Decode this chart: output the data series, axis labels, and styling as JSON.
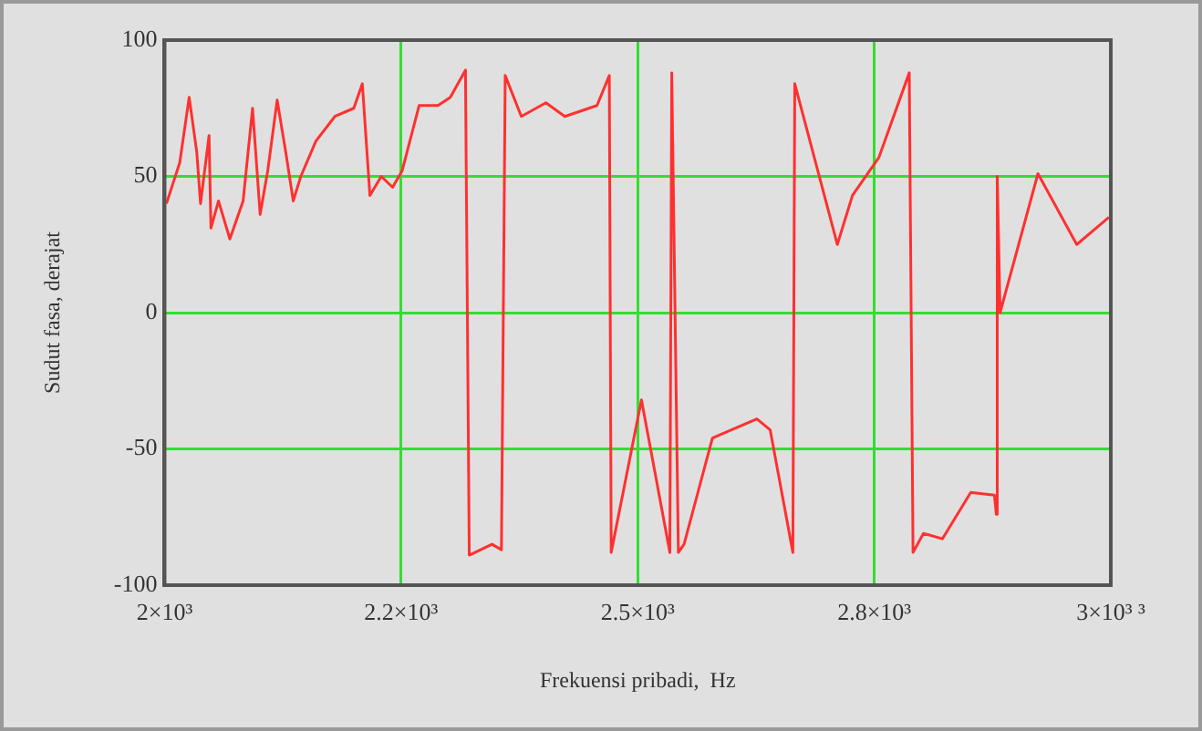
{
  "chart_data": {
    "type": "line",
    "xlabel": "Frekuensi pribadi,  Hz",
    "ylabel": "Sudut fasa, derajat",
    "xlim": [
      2000,
      3000
    ],
    "xticks": [
      {
        "value": 2000,
        "label": "2×10³"
      },
      {
        "value": 2250,
        "label": "2.2×10³"
      },
      {
        "value": 2500,
        "label": "2.5×10³"
      },
      {
        "value": 2750,
        "label": "2.8×10³"
      },
      {
        "value": 3000,
        "label": "3×10³ ³"
      }
    ],
    "ylim": [
      -100,
      100
    ],
    "yticks": [
      -100,
      -50,
      0,
      50,
      100
    ],
    "grid": true,
    "line_style": "solid",
    "marker": "none",
    "series": [
      {
        "color": "#ff3030",
        "x": [
          2002,
          2016,
          2026,
          2034,
          2038,
          2047,
          2049,
          2057,
          2069,
          2083,
          2093,
          2101,
          2109,
          2119,
          2128,
          2136,
          2144,
          2160,
          2180,
          2200,
          2209,
          2217,
          2229,
          2241,
          2251,
          2269,
          2289,
          2302,
          2318,
          2322,
          2346,
          2356,
          2360,
          2377,
          2403,
          2423,
          2457,
          2470,
          2472,
          2504,
          2534,
          2536,
          2543,
          2549,
          2579,
          2599,
          2626,
          2640,
          2664,
          2666,
          2711,
          2727,
          2755,
          2787,
          2791,
          2802,
          2822,
          2852,
          2877,
          2879,
          2880,
          2883,
          2923,
          2964,
          2998
        ],
        "values": [
          40,
          55,
          79,
          59,
          40,
          65,
          31,
          41,
          27,
          41,
          75,
          36,
          52,
          78,
          59,
          41,
          50,
          63,
          72,
          75,
          84,
          43,
          50,
          46,
          52,
          76,
          76,
          79,
          89,
          -89,
          -85,
          -87,
          87,
          72,
          77,
          72,
          76,
          87,
          -88,
          -32,
          -88,
          88,
          -88,
          -85,
          -46,
          -43,
          -39,
          -43,
          -88,
          84,
          25,
          43,
          57,
          88,
          -88,
          -81,
          -83,
          -66,
          -67,
          -74,
          50,
          0,
          51,
          25,
          35
        ]
      }
    ]
  }
}
